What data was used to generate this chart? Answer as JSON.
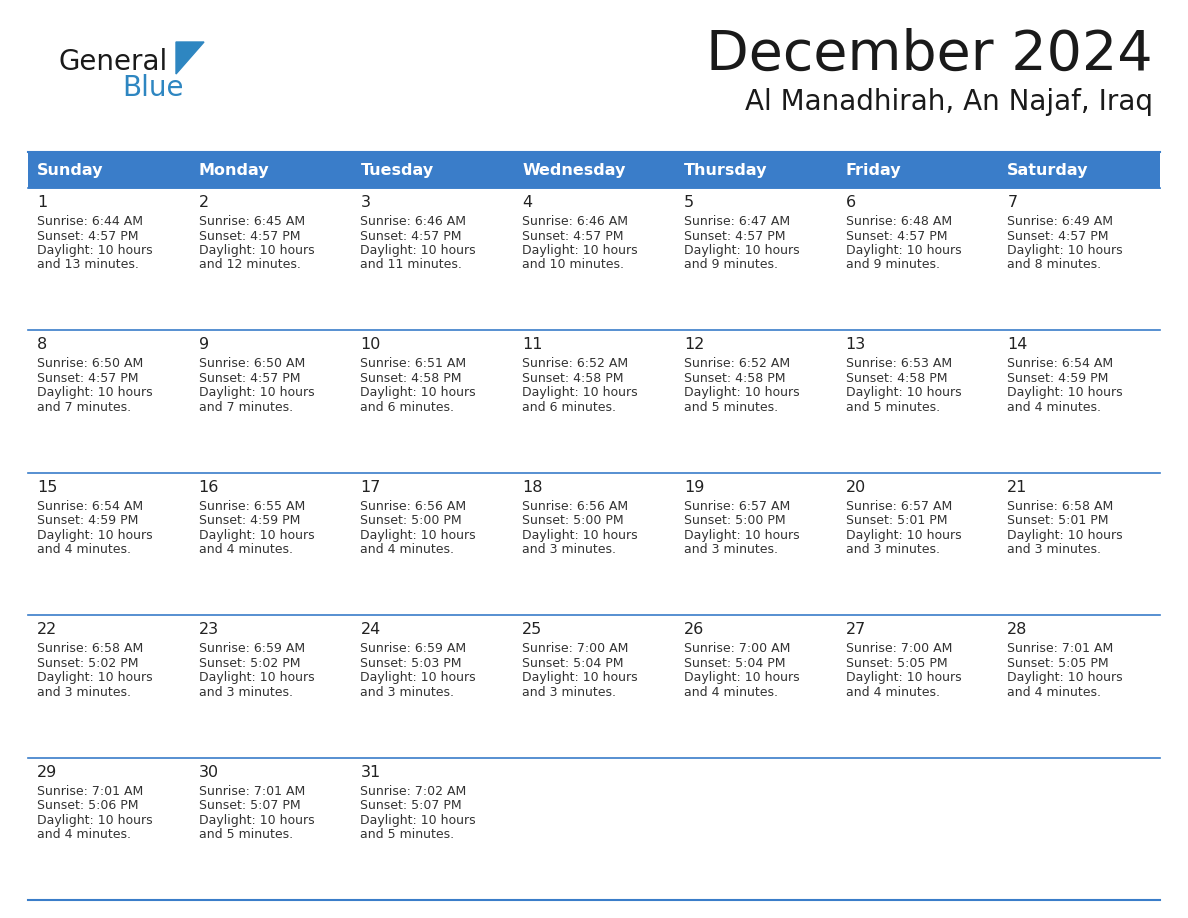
{
  "title": "December 2024",
  "subtitle": "Al Manadhirah, An Najaf, Iraq",
  "header_bg": "#3A7DC9",
  "header_text_color": "#FFFFFF",
  "cell_bg": "#FFFFFF",
  "border_color": "#3A7DC9",
  "separator_color": "#3A7DC9",
  "text_color": "#222222",
  "info_color": "#333333",
  "day_names": [
    "Sunday",
    "Monday",
    "Tuesday",
    "Wednesday",
    "Thursday",
    "Friday",
    "Saturday"
  ],
  "weeks": [
    [
      {
        "day": 1,
        "sunrise": "6:44 AM",
        "sunset": "4:57 PM",
        "daylight": "10 hours and 13 minutes."
      },
      {
        "day": 2,
        "sunrise": "6:45 AM",
        "sunset": "4:57 PM",
        "daylight": "10 hours and 12 minutes."
      },
      {
        "day": 3,
        "sunrise": "6:46 AM",
        "sunset": "4:57 PM",
        "daylight": "10 hours and 11 minutes."
      },
      {
        "day": 4,
        "sunrise": "6:46 AM",
        "sunset": "4:57 PM",
        "daylight": "10 hours and 10 minutes."
      },
      {
        "day": 5,
        "sunrise": "6:47 AM",
        "sunset": "4:57 PM",
        "daylight": "10 hours and 9 minutes."
      },
      {
        "day": 6,
        "sunrise": "6:48 AM",
        "sunset": "4:57 PM",
        "daylight": "10 hours and 9 minutes."
      },
      {
        "day": 7,
        "sunrise": "6:49 AM",
        "sunset": "4:57 PM",
        "daylight": "10 hours and 8 minutes."
      }
    ],
    [
      {
        "day": 8,
        "sunrise": "6:50 AM",
        "sunset": "4:57 PM",
        "daylight": "10 hours and 7 minutes."
      },
      {
        "day": 9,
        "sunrise": "6:50 AM",
        "sunset": "4:57 PM",
        "daylight": "10 hours and 7 minutes."
      },
      {
        "day": 10,
        "sunrise": "6:51 AM",
        "sunset": "4:58 PM",
        "daylight": "10 hours and 6 minutes."
      },
      {
        "day": 11,
        "sunrise": "6:52 AM",
        "sunset": "4:58 PM",
        "daylight": "10 hours and 6 minutes."
      },
      {
        "day": 12,
        "sunrise": "6:52 AM",
        "sunset": "4:58 PM",
        "daylight": "10 hours and 5 minutes."
      },
      {
        "day": 13,
        "sunrise": "6:53 AM",
        "sunset": "4:58 PM",
        "daylight": "10 hours and 5 minutes."
      },
      {
        "day": 14,
        "sunrise": "6:54 AM",
        "sunset": "4:59 PM",
        "daylight": "10 hours and 4 minutes."
      }
    ],
    [
      {
        "day": 15,
        "sunrise": "6:54 AM",
        "sunset": "4:59 PM",
        "daylight": "10 hours and 4 minutes."
      },
      {
        "day": 16,
        "sunrise": "6:55 AM",
        "sunset": "4:59 PM",
        "daylight": "10 hours and 4 minutes."
      },
      {
        "day": 17,
        "sunrise": "6:56 AM",
        "sunset": "5:00 PM",
        "daylight": "10 hours and 4 minutes."
      },
      {
        "day": 18,
        "sunrise": "6:56 AM",
        "sunset": "5:00 PM",
        "daylight": "10 hours and 3 minutes."
      },
      {
        "day": 19,
        "sunrise": "6:57 AM",
        "sunset": "5:00 PM",
        "daylight": "10 hours and 3 minutes."
      },
      {
        "day": 20,
        "sunrise": "6:57 AM",
        "sunset": "5:01 PM",
        "daylight": "10 hours and 3 minutes."
      },
      {
        "day": 21,
        "sunrise": "6:58 AM",
        "sunset": "5:01 PM",
        "daylight": "10 hours and 3 minutes."
      }
    ],
    [
      {
        "day": 22,
        "sunrise": "6:58 AM",
        "sunset": "5:02 PM",
        "daylight": "10 hours and 3 minutes."
      },
      {
        "day": 23,
        "sunrise": "6:59 AM",
        "sunset": "5:02 PM",
        "daylight": "10 hours and 3 minutes."
      },
      {
        "day": 24,
        "sunrise": "6:59 AM",
        "sunset": "5:03 PM",
        "daylight": "10 hours and 3 minutes."
      },
      {
        "day": 25,
        "sunrise": "7:00 AM",
        "sunset": "5:04 PM",
        "daylight": "10 hours and 3 minutes."
      },
      {
        "day": 26,
        "sunrise": "7:00 AM",
        "sunset": "5:04 PM",
        "daylight": "10 hours and 4 minutes."
      },
      {
        "day": 27,
        "sunrise": "7:00 AM",
        "sunset": "5:05 PM",
        "daylight": "10 hours and 4 minutes."
      },
      {
        "day": 28,
        "sunrise": "7:01 AM",
        "sunset": "5:05 PM",
        "daylight": "10 hours and 4 minutes."
      }
    ],
    [
      {
        "day": 29,
        "sunrise": "7:01 AM",
        "sunset": "5:06 PM",
        "daylight": "10 hours and 4 minutes."
      },
      {
        "day": 30,
        "sunrise": "7:01 AM",
        "sunset": "5:07 PM",
        "daylight": "10 hours and 5 minutes."
      },
      {
        "day": 31,
        "sunrise": "7:02 AM",
        "sunset": "5:07 PM",
        "daylight": "10 hours and 5 minutes."
      },
      null,
      null,
      null,
      null
    ]
  ],
  "logo_general_color": "#1a1a1a",
  "logo_blue_color": "#2E86C1",
  "logo_triangle_color": "#2E86C1",
  "fig_width": 11.88,
  "fig_height": 9.18,
  "dpi": 100
}
